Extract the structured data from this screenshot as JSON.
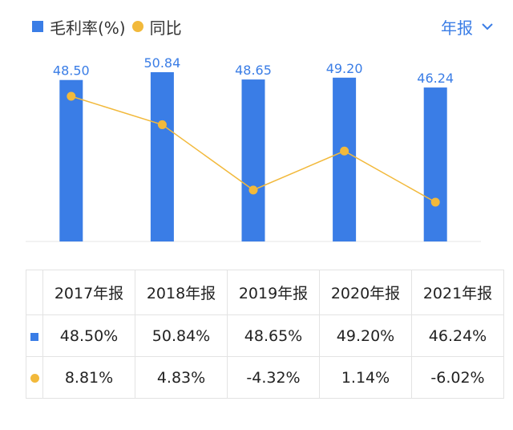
{
  "legend": {
    "bar_label": "毛利率(%)",
    "line_label": "同比"
  },
  "period_selector": {
    "label": "年报"
  },
  "colors": {
    "bar": "#3a7de6",
    "line": "#f2b93b",
    "positive": "#d64545",
    "negative": "#1aa061",
    "label": "#3a7de6"
  },
  "chart_data": {
    "type": "bar",
    "categories": [
      "2017年报",
      "2018年报",
      "2019年报",
      "2020年报",
      "2021年报"
    ],
    "series": [
      {
        "name": "毛利率(%)",
        "type": "bar",
        "values": [
          48.5,
          50.84,
          48.65,
          49.2,
          46.24
        ],
        "labels": [
          "48.50",
          "50.84",
          "48.65",
          "49.20",
          "46.24"
        ]
      },
      {
        "name": "同比",
        "type": "line",
        "values": [
          8.81,
          4.83,
          -4.32,
          1.14,
          -6.02
        ]
      }
    ],
    "title": "",
    "xlabel": "",
    "ylabel": ""
  },
  "table": {
    "headers": [
      "2017年报",
      "2018年报",
      "2019年报",
      "2020年报",
      "2021年报"
    ],
    "gross_margin_row": [
      "48.50%",
      "50.84%",
      "48.65%",
      "49.20%",
      "46.24%"
    ],
    "yoy_row": [
      "8.81%",
      "4.83%",
      "-4.32%",
      "1.14%",
      "-6.02%"
    ]
  }
}
